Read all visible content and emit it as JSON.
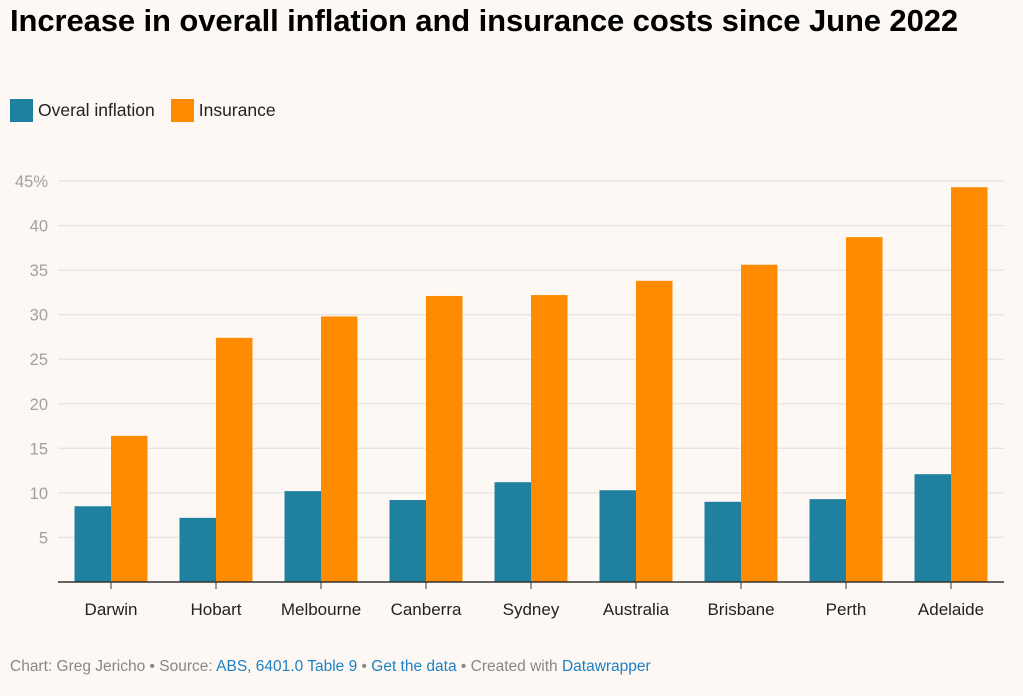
{
  "title": "Increase in overall inflation and insurance costs since June 2022",
  "legend": [
    {
      "label": "Overal inflation",
      "color": "#1f80a0"
    },
    {
      "label": "Insurance",
      "color": "#ff8c00"
    }
  ],
  "footer": {
    "chart_prefix": "Chart: Greg Jericho",
    "sep1": " • ",
    "source_prefix": "Source: ",
    "source_link": "ABS, 6401.0 Table 9",
    "sep2": " • ",
    "get_data_link": "Get the data",
    "sep3": " • ",
    "created_prefix": "Created with ",
    "created_link": "Datawrapper"
  },
  "chart_data": {
    "type": "bar",
    "title": "Increase in overall inflation and insurance costs since June 2022",
    "xlabel": "",
    "ylabel": "",
    "categories": [
      "Darwin",
      "Hobart",
      "Melbourne",
      "Canberra",
      "Sydney",
      "Australia",
      "Brisbane",
      "Perth",
      "Adelaide"
    ],
    "series": [
      {
        "name": "Overal inflation",
        "color": "#1f80a0",
        "values": [
          8.5,
          7.2,
          10.2,
          9.2,
          11.2,
          10.3,
          9.0,
          9.3,
          12.1
        ]
      },
      {
        "name": "Insurance",
        "color": "#ff8c00",
        "values": [
          16.4,
          27.4,
          29.8,
          32.1,
          32.2,
          33.8,
          35.6,
          38.7,
          44.3
        ]
      }
    ],
    "ylim": [
      0,
      45
    ],
    "yticks": [
      5,
      10,
      15,
      20,
      25,
      30,
      35,
      40,
      45
    ],
    "ytick_labels": [
      "5",
      "10",
      "15",
      "20",
      "25",
      "30",
      "35",
      "40",
      "45%"
    ],
    "grid": true,
    "legend_position": "top-left"
  }
}
